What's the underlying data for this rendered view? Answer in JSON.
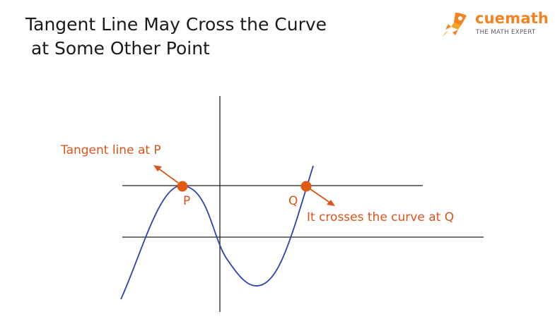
{
  "title": {
    "line1": "Tangent Line May Cross the Curve",
    "line2": " at Some Other Point"
  },
  "logo": {
    "word": "cuemath",
    "tagline": "THE MATH EXPERT",
    "icon": "rocket-icon"
  },
  "diagram": {
    "labels": {
      "tangent_line": "Tangent line at P",
      "point_p": "P",
      "point_q": "Q",
      "crosses": "It crosses the curve at Q"
    },
    "colors": {
      "curve": "#2f3fb3",
      "lines": "#222222",
      "accent": "#d9541c"
    }
  }
}
